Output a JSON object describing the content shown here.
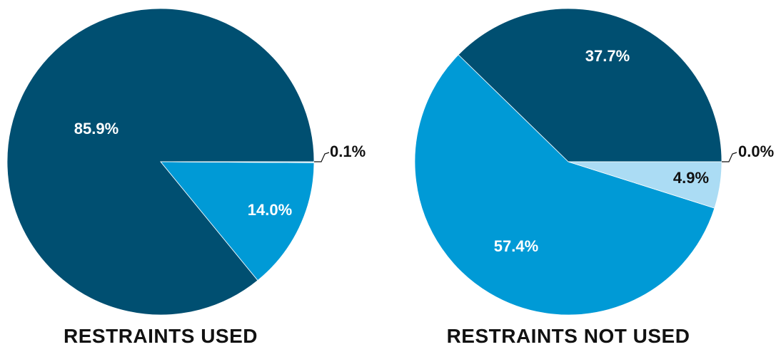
{
  "colors": {
    "dark": "#004f71",
    "medium": "#009ad6",
    "light": "#abdcf4",
    "label_light": "#ffffff",
    "label_dark": "#111111"
  },
  "chart_data": [
    {
      "type": "pie",
      "title": "RESTRAINTS USED",
      "slices": [
        {
          "value": 85.9,
          "label": "85.9%",
          "color": "dark"
        },
        {
          "value": 14.0,
          "label": "14.0%",
          "color": "medium"
        },
        {
          "value": 0.1,
          "label": "0.1%",
          "color": "light"
        }
      ]
    },
    {
      "type": "pie",
      "title": "RESTRAINTS NOT USED",
      "slices": [
        {
          "value": 37.7,
          "label": "37.7%",
          "color": "dark"
        },
        {
          "value": 57.4,
          "label": "57.4%",
          "color": "medium"
        },
        {
          "value": 4.9,
          "label": "4.9%",
          "color": "light"
        },
        {
          "value": 0.0,
          "label": "0.0%",
          "color": "light"
        }
      ]
    }
  ]
}
